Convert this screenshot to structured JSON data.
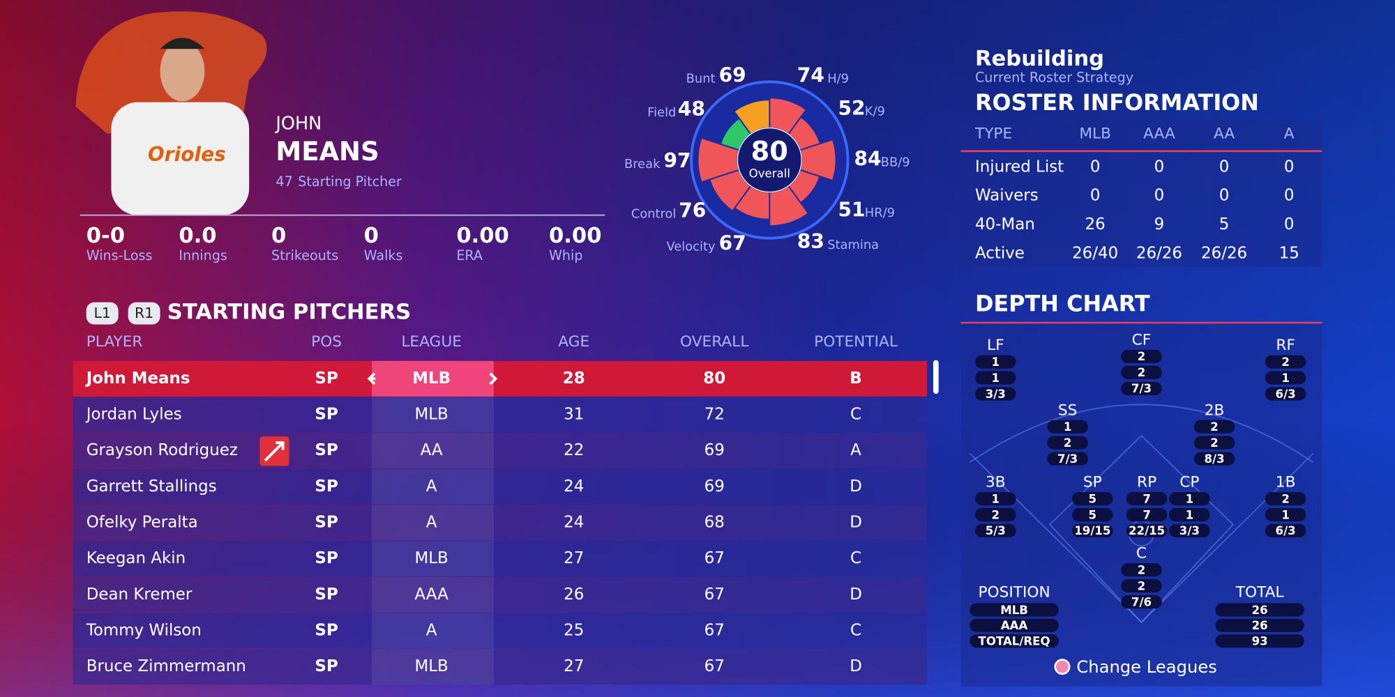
{
  "player": {
    "first_name": "JOHN",
    "last_name": "MEANS",
    "number": "47",
    "position": "Starting Pitcher"
  },
  "season_stats": [
    {
      "value": "0-0",
      "label": "Wins-Loss"
    },
    {
      "value": "0.0",
      "label": "Innings"
    },
    {
      "value": "0",
      "label": "Strikeouts"
    },
    {
      "value": "0",
      "label": "Walks"
    },
    {
      "value": "0.00",
      "label": "ERA"
    },
    {
      "value": "0.00",
      "label": "Whip"
    }
  ],
  "ratings": {
    "overall": 80,
    "overall_label": "Overall",
    "attributes": [
      {
        "name": "H/9",
        "value": 74,
        "color": "#f0555a"
      },
      {
        "name": "K/9",
        "value": 52,
        "color": "#f0555a"
      },
      {
        "name": "BB/9",
        "value": 84,
        "color": "#f0555a"
      },
      {
        "name": "HR/9",
        "value": 51,
        "color": "#f0555a"
      },
      {
        "name": "Stamina",
        "value": 83,
        "color": "#f0555a"
      },
      {
        "name": "Velocity",
        "value": 67,
        "color": "#f0555a"
      },
      {
        "name": "Control",
        "value": 76,
        "color": "#f0555a"
      },
      {
        "name": "Break",
        "value": 97,
        "color": "#f0555a"
      },
      {
        "name": "Field",
        "value": 48,
        "color": "#2ec86a"
      },
      {
        "name": "Bunt",
        "value": 69,
        "color": "#f5a020"
      }
    ]
  },
  "strategy": {
    "title": "Rebuilding",
    "subtitle": "Current Roster Strategy"
  },
  "roster_info": {
    "title": "ROSTER INFORMATION",
    "columns": [
      "TYPE",
      "MLB",
      "AAA",
      "AA",
      "A"
    ],
    "rows": [
      [
        "Injured List",
        "0",
        "0",
        "0",
        "0"
      ],
      [
        "Waivers",
        "0",
        "0",
        "0",
        "0"
      ],
      [
        "40-Man",
        "26",
        "9",
        "5",
        "0"
      ],
      [
        "Active",
        "26/40",
        "26/26",
        "26/26",
        "15"
      ]
    ]
  },
  "pitchers": {
    "buttons": [
      "L1",
      "R1"
    ],
    "title": "STARTING PITCHERS",
    "columns": [
      "PLAYER",
      "POS",
      "LEAGUE",
      "AGE",
      "OVERALL",
      "POTENTIAL"
    ],
    "rows": [
      [
        "John Means",
        "SP",
        "MLB",
        "28",
        "80",
        "B"
      ],
      [
        "Jordan Lyles",
        "SP",
        "MLB",
        "31",
        "72",
        "C"
      ],
      [
        "Grayson Rodriguez",
        "SP",
        "AA",
        "22",
        "69",
        "A"
      ],
      [
        "Garrett Stallings",
        "SP",
        "A",
        "24",
        "69",
        "D"
      ],
      [
        "Ofelky Peralta",
        "SP",
        "A",
        "24",
        "68",
        "D"
      ],
      [
        "Keegan Akin",
        "SP",
        "MLB",
        "27",
        "67",
        "C"
      ],
      [
        "Dean Kremer",
        "SP",
        "AAA",
        "26",
        "67",
        "D"
      ],
      [
        "Tommy Wilson",
        "SP",
        "A",
        "25",
        "67",
        "C"
      ],
      [
        "Bruce Zimmermann",
        "SP",
        "MLB",
        "27",
        "67",
        "D"
      ]
    ]
  },
  "depth_chart": {
    "title": "DEPTH CHART",
    "positions": [
      {
        "label": "LF",
        "values": [
          "1",
          "1",
          "3/3"
        ]
      },
      {
        "label": "CF",
        "values": [
          "2",
          "2",
          "7/3"
        ]
      },
      {
        "label": "RF",
        "values": [
          "2",
          "1",
          "6/3"
        ]
      },
      {
        "label": "SS",
        "values": [
          "1",
          "2",
          "7/3"
        ]
      },
      {
        "label": "2B",
        "values": [
          "2",
          "2",
          "8/3"
        ]
      },
      {
        "label": "3B",
        "values": [
          "1",
          "2",
          "5/3"
        ]
      },
      {
        "label": "SP",
        "values": [
          "5",
          "5",
          "19/15"
        ]
      },
      {
        "label": "RP",
        "values": [
          "7",
          "7",
          "22/15"
        ]
      },
      {
        "label": "CP",
        "values": [
          "1",
          "1",
          "3/3"
        ]
      },
      {
        "label": "1B",
        "values": [
          "2",
          "1",
          "6/3"
        ]
      },
      {
        "label": "C",
        "values": [
          "2",
          "2",
          "7/6"
        ]
      }
    ],
    "position_label": "POSITION",
    "legend": [
      "MLB",
      "AAA",
      "TOTAL/REQ"
    ],
    "total_label": "TOTAL",
    "totals": [
      "26",
      "26",
      "93"
    ],
    "footer": "Change Leagues"
  }
}
